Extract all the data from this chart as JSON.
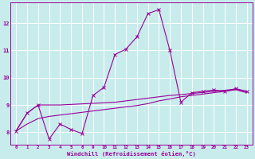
{
  "xlabel": "Windchill (Refroidissement éolien,°C)",
  "bg_color": "#c8ecec",
  "grid_color": "#ffffff",
  "line_color": "#990099",
  "x_positions": [
    0,
    1,
    2,
    3,
    4,
    5,
    6,
    7,
    8,
    9,
    10,
    11,
    12,
    13,
    14,
    15,
    16,
    17,
    18,
    19,
    20,
    21
  ],
  "x_tick_labels": [
    "0",
    "1",
    "2",
    "3",
    "4",
    "5",
    "6",
    "9",
    "10",
    "11",
    "12",
    "13",
    "14",
    "15",
    "16",
    "17",
    "18",
    "19",
    "20",
    "21",
    "22",
    "23"
  ],
  "ylim": [
    7.55,
    12.75
  ],
  "yticks": [
    8,
    9,
    10,
    11,
    12
  ],
  "curve1_x": [
    0,
    1,
    2,
    3,
    4,
    5,
    6,
    7,
    8,
    9,
    10,
    11,
    12,
    13,
    14,
    15,
    16,
    17,
    18,
    19,
    20,
    21
  ],
  "curve1_y": [
    8.05,
    8.7,
    9.0,
    7.75,
    8.3,
    8.1,
    7.95,
    9.35,
    9.65,
    10.85,
    11.05,
    11.5,
    12.35,
    12.5,
    11.0,
    9.1,
    9.45,
    9.5,
    9.55,
    9.5,
    9.6,
    9.5
  ],
  "curve2_x": [
    0,
    1,
    2,
    3,
    4,
    5,
    6,
    7,
    8,
    9,
    10,
    11,
    12,
    13,
    14,
    15,
    16,
    17,
    18,
    19,
    20,
    21
  ],
  "curve2_y": [
    8.05,
    8.7,
    9.0,
    9.0,
    9.0,
    9.02,
    9.04,
    9.06,
    9.08,
    9.1,
    9.15,
    9.2,
    9.25,
    9.3,
    9.35,
    9.38,
    9.42,
    9.46,
    9.5,
    9.54,
    9.58,
    9.48
  ],
  "curve3_x": [
    0,
    1,
    2,
    3,
    4,
    5,
    6,
    7,
    8,
    9,
    10,
    11,
    12,
    13,
    14,
    15,
    16,
    17,
    18,
    19,
    20,
    21
  ],
  "curve3_y": [
    8.05,
    8.3,
    8.5,
    8.58,
    8.63,
    8.68,
    8.73,
    8.78,
    8.83,
    8.88,
    8.93,
    8.98,
    9.05,
    9.15,
    9.22,
    9.3,
    9.35,
    9.4,
    9.45,
    9.5,
    9.56,
    9.45
  ]
}
